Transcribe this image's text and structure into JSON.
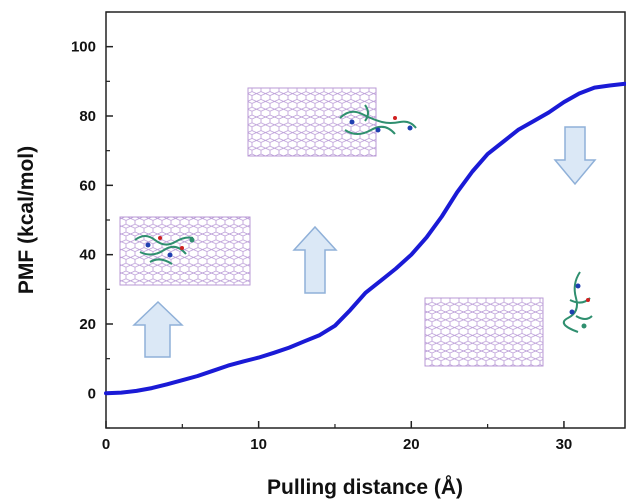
{
  "chart_data": {
    "type": "line",
    "title": "",
    "xlabel": "Pulling distance (Å)",
    "ylabel": "PMF (kcal/mol)",
    "xlim": [
      0,
      34
    ],
    "ylim": [
      -10,
      110
    ],
    "x_ticks": [
      0,
      10,
      20,
      30
    ],
    "y_ticks": [
      0,
      20,
      40,
      60,
      80,
      100
    ],
    "grid": false,
    "legend": "none",
    "series": [
      {
        "color": "#1a1ad6",
        "x": [
          0,
          1,
          2,
          3,
          4,
          5,
          6,
          7,
          8,
          9,
          10,
          11,
          12,
          13,
          14,
          15,
          16,
          17,
          18,
          19,
          20,
          21,
          22,
          23,
          24,
          25,
          26,
          27,
          28,
          29,
          30,
          31,
          32,
          33,
          34
        ],
        "y": [
          0,
          0.2,
          0.7,
          1.5,
          2.6,
          3.8,
          5.0,
          6.5,
          8.0,
          9.2,
          10.3,
          11.7,
          13.2,
          15.0,
          16.8,
          19.5,
          24.0,
          29.0,
          32.5,
          36.0,
          40.0,
          45.0,
          51.0,
          58.0,
          64.0,
          69.0,
          72.5,
          76.0,
          78.5,
          81.0,
          84.0,
          86.5,
          88.2,
          88.8,
          89.3
        ]
      }
    ]
  },
  "annotations": {
    "arrow_color": "#dbe8f6",
    "arrow_stroke": "#8fb0d8",
    "nanotube_color": "#b99ad6",
    "arrows": [
      {
        "name": "up-arrow-left",
        "direction": "up"
      },
      {
        "name": "up-arrow-middle",
        "direction": "up"
      },
      {
        "name": "down-arrow-right",
        "direction": "down"
      }
    ]
  }
}
